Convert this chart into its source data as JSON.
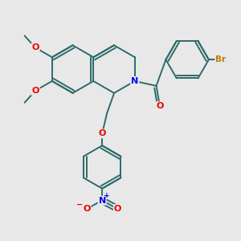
{
  "background_color": "#e8e8e8",
  "bond_color": "#2d6b6b",
  "bond_width": 1.4,
  "atom_colors": {
    "N": "#0000ee",
    "O": "#ee0000",
    "Br": "#cc7700",
    "C": "#2d6b6b"
  },
  "xlim": [
    -4.5,
    5.5
  ],
  "ylim": [
    -5.5,
    4.0
  ]
}
